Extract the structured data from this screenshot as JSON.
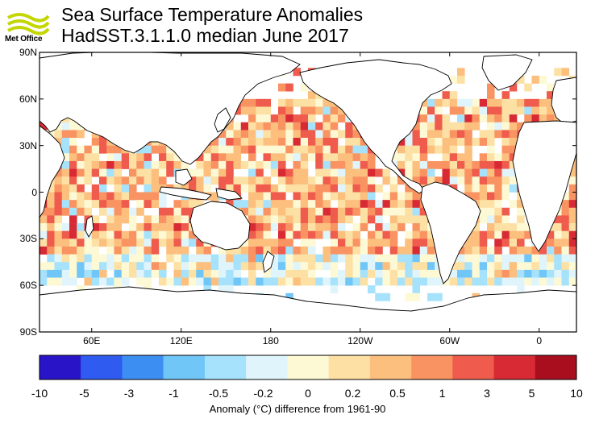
{
  "header": {
    "logo_text": "Met Office",
    "title": "Sea Surface Temperature Anomalies",
    "subtitle": "HadSST.3.1.1.0 median June 2017"
  },
  "map": {
    "lat_labels": [
      "90N",
      "60N",
      "30N",
      "0",
      "30S",
      "60S",
      "90S"
    ],
    "lat_values": [
      90,
      60,
      30,
      0,
      -30,
      -60,
      -90
    ],
    "lon_labels": [
      "60E",
      "120E",
      "180",
      "120W",
      "60W",
      "0"
    ],
    "lon_values": [
      60,
      120,
      180,
      240,
      300,
      360
    ],
    "lon_range": [
      25,
      385
    ],
    "lat_range": [
      -90,
      90
    ]
  },
  "colorbar": {
    "ticks": [
      "-10",
      "-5",
      "-3",
      "-1",
      "-0.5",
      "-0.2",
      "0",
      "0.2",
      "0.5",
      "1",
      "3",
      "5",
      "10"
    ],
    "colors": [
      "#2a14c8",
      "#2f5bf0",
      "#3d8ef2",
      "#6fc6f7",
      "#a6e2fb",
      "#dff4fb",
      "#fdf9d4",
      "#fde0a4",
      "#fcbf7e",
      "#f99462",
      "#ef5b4c",
      "#d72a34",
      "#a80e1e"
    ],
    "title": "Anomaly (°C) difference from 1961-90"
  },
  "colors": {
    "land_outline": "#000000",
    "frame": "#000000"
  }
}
